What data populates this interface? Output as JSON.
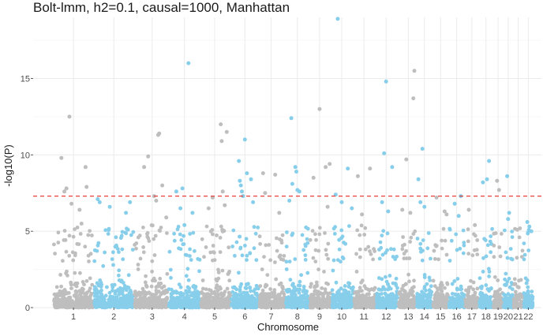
{
  "chart_data": {
    "type": "scatter",
    "title": "Bolt-lmm, h2=0.1, causal=1000, Manhattan",
    "xlabel": "Chromosome",
    "ylabel": "-log10(P)",
    "ylim": [
      0,
      19
    ],
    "yticks": [
      0,
      5,
      10,
      15
    ],
    "grid": true,
    "legend": "none",
    "threshold": {
      "value": 7.3,
      "color": "#e8413c",
      "style": "dashed"
    },
    "colors": {
      "odd": "#bebebe",
      "even": "#87ceeb"
    },
    "chromosomes": [
      {
        "label": "1",
        "center": 1.0,
        "start": 0.0,
        "end": 2.0
      },
      {
        "label": "2",
        "center": 3.0,
        "start": 2.0,
        "end": 4.0
      },
      {
        "label": "3",
        "center": 4.9,
        "start": 4.0,
        "end": 5.7
      },
      {
        "label": "4",
        "center": 6.5,
        "start": 5.7,
        "end": 7.3
      },
      {
        "label": "5",
        "center": 8.0,
        "start": 7.3,
        "end": 8.8
      },
      {
        "label": "6",
        "center": 9.5,
        "start": 8.8,
        "end": 10.2
      },
      {
        "label": "7",
        "center": 10.8,
        "start": 10.2,
        "end": 11.5
      },
      {
        "label": "8",
        "center": 12.1,
        "start": 11.5,
        "end": 12.7
      },
      {
        "label": "9",
        "center": 13.2,
        "start": 12.7,
        "end": 13.8
      },
      {
        "label": "10",
        "center": 14.3,
        "start": 13.8,
        "end": 14.9
      },
      {
        "label": "11",
        "center": 15.4,
        "start": 14.9,
        "end": 16.0
      },
      {
        "label": "12",
        "center": 16.5,
        "start": 16.0,
        "end": 17.1
      },
      {
        "label": "13",
        "center": 17.6,
        "start": 17.1,
        "end": 18.0
      },
      {
        "label": "14",
        "center": 18.4,
        "start": 18.0,
        "end": 18.8
      },
      {
        "label": "15",
        "center": 19.2,
        "start": 18.8,
        "end": 19.6
      },
      {
        "label": "16",
        "center": 20.0,
        "start": 19.6,
        "end": 20.4
      },
      {
        "label": "17",
        "center": 20.75,
        "start": 20.4,
        "end": 21.1
      },
      {
        "label": "18",
        "center": 21.45,
        "start": 21.1,
        "end": 21.8
      },
      {
        "label": "19",
        "center": 22.05,
        "start": 21.8,
        "end": 22.3
      },
      {
        "label": "20",
        "center": 22.55,
        "start": 22.3,
        "end": 22.8
      },
      {
        "label": "21",
        "center": 23.05,
        "start": 22.8,
        "end": 23.3
      },
      {
        "label": "22",
        "center": 23.55,
        "start": 23.3,
        "end": 23.8
      }
    ],
    "xlim": [
      -1.0,
      24.2
    ],
    "notable_points": [
      {
        "chr": "1",
        "x": 0.4,
        "y": 9.8
      },
      {
        "chr": "1",
        "x": 0.55,
        "y": 7.6
      },
      {
        "chr": "1",
        "x": 0.65,
        "y": 7.8
      },
      {
        "chr": "1",
        "x": 0.8,
        "y": 12.5
      },
      {
        "chr": "1",
        "x": 0.9,
        "y": 6.8
      },
      {
        "chr": "1",
        "x": 1.3,
        "y": 6.4
      },
      {
        "chr": "1",
        "x": 1.6,
        "y": 9.2
      },
      {
        "chr": "1",
        "x": 1.65,
        "y": 7.9
      },
      {
        "chr": "1",
        "x": 1.4,
        "y": 5.5
      },
      {
        "chr": "2",
        "x": 2.2,
        "y": 7.1
      },
      {
        "chr": "2",
        "x": 2.3,
        "y": 6.9
      },
      {
        "chr": "2",
        "x": 2.8,
        "y": 6.6
      },
      {
        "chr": "2",
        "x": 3.6,
        "y": 6.2
      },
      {
        "chr": "2",
        "x": 3.7,
        "y": 5.1
      },
      {
        "chr": "2",
        "x": 3.8,
        "y": 6.9
      },
      {
        "chr": "3",
        "x": 4.5,
        "y": 9.2
      },
      {
        "chr": "3",
        "x": 4.7,
        "y": 9.9
      },
      {
        "chr": "3",
        "x": 5.0,
        "y": 7.3
      },
      {
        "chr": "3",
        "x": 5.2,
        "y": 11.3
      },
      {
        "chr": "3",
        "x": 5.25,
        "y": 11.4
      },
      {
        "chr": "3",
        "x": 5.4,
        "y": 8.0
      },
      {
        "chr": "3",
        "x": 5.1,
        "y": 7.0
      },
      {
        "chr": "3",
        "x": 5.6,
        "y": 5.9
      },
      {
        "chr": "4",
        "x": 6.1,
        "y": 7.6
      },
      {
        "chr": "4",
        "x": 6.4,
        "y": 7.8
      },
      {
        "chr": "4",
        "x": 6.7,
        "y": 16.0
      },
      {
        "chr": "4",
        "x": 6.3,
        "y": 6.5
      },
      {
        "chr": "4",
        "x": 6.9,
        "y": 6.2
      },
      {
        "chr": "4",
        "x": 6.5,
        "y": 5.4
      },
      {
        "chr": "5",
        "x": 7.7,
        "y": 6.5
      },
      {
        "chr": "5",
        "x": 7.9,
        "y": 7.2
      },
      {
        "chr": "5",
        "x": 8.3,
        "y": 12.0
      },
      {
        "chr": "5",
        "x": 8.35,
        "y": 10.9
      },
      {
        "chr": "5",
        "x": 8.4,
        "y": 7.6
      },
      {
        "chr": "5",
        "x": 8.6,
        "y": 11.5
      },
      {
        "chr": "5",
        "x": 8.5,
        "y": 6.7
      },
      {
        "chr": "6",
        "x": 9.2,
        "y": 9.6
      },
      {
        "chr": "6",
        "x": 9.25,
        "y": 8.3
      },
      {
        "chr": "6",
        "x": 9.3,
        "y": 8.0
      },
      {
        "chr": "6",
        "x": 9.35,
        "y": 7.6
      },
      {
        "chr": "6",
        "x": 9.4,
        "y": 7.3
      },
      {
        "chr": "6",
        "x": 9.5,
        "y": 11.0
      },
      {
        "chr": "6",
        "x": 9.6,
        "y": 8.8
      },
      {
        "chr": "6",
        "x": 9.8,
        "y": 8.4
      },
      {
        "chr": "6",
        "x": 9.9,
        "y": 6.9
      },
      {
        "chr": "7",
        "x": 10.4,
        "y": 8.8
      },
      {
        "chr": "7",
        "x": 10.5,
        "y": 7.5
      },
      {
        "chr": "7",
        "x": 11.0,
        "y": 8.7
      },
      {
        "chr": "7",
        "x": 11.2,
        "y": 6.2
      },
      {
        "chr": "8",
        "x": 11.8,
        "y": 12.4
      },
      {
        "chr": "8",
        "x": 11.85,
        "y": 8.1
      },
      {
        "chr": "8",
        "x": 12.0,
        "y": 9.2
      },
      {
        "chr": "8",
        "x": 12.05,
        "y": 8.9
      },
      {
        "chr": "8",
        "x": 12.1,
        "y": 7.7
      },
      {
        "chr": "8",
        "x": 12.2,
        "y": 7.6
      },
      {
        "chr": "8",
        "x": 11.7,
        "y": 7.0
      },
      {
        "chr": "9",
        "x": 12.9,
        "y": 8.5
      },
      {
        "chr": "9",
        "x": 13.2,
        "y": 13.0
      },
      {
        "chr": "9",
        "x": 13.5,
        "y": 9.2
      },
      {
        "chr": "9",
        "x": 13.7,
        "y": 9.4
      },
      {
        "chr": "9",
        "x": 13.6,
        "y": 6.6
      },
      {
        "chr": "10",
        "x": 14.1,
        "y": 18.9
      },
      {
        "chr": "10",
        "x": 14.0,
        "y": 7.4
      },
      {
        "chr": "10",
        "x": 14.3,
        "y": 6.9
      },
      {
        "chr": "10",
        "x": 14.6,
        "y": 9.1
      },
      {
        "chr": "10",
        "x": 14.8,
        "y": 6.5
      },
      {
        "chr": "11",
        "x": 15.1,
        "y": 8.6
      },
      {
        "chr": "11",
        "x": 15.7,
        "y": 9.1
      },
      {
        "chr": "11",
        "x": 15.3,
        "y": 6.1
      },
      {
        "chr": "12",
        "x": 16.3,
        "y": 6.9
      },
      {
        "chr": "12",
        "x": 16.4,
        "y": 10.1
      },
      {
        "chr": "12",
        "x": 16.5,
        "y": 14.8
      },
      {
        "chr": "12",
        "x": 16.8,
        "y": 9.2
      },
      {
        "chr": "12",
        "x": 16.6,
        "y": 6.3
      },
      {
        "chr": "13",
        "x": 17.3,
        "y": 6.4
      },
      {
        "chr": "13",
        "x": 17.5,
        "y": 9.7
      },
      {
        "chr": "13",
        "x": 17.9,
        "y": 15.5
      },
      {
        "chr": "13",
        "x": 17.85,
        "y": 13.7
      },
      {
        "chr": "13",
        "x": 17.7,
        "y": 6.2
      },
      {
        "chr": "14",
        "x": 18.3,
        "y": 10.4
      },
      {
        "chr": "14",
        "x": 18.1,
        "y": 8.4
      },
      {
        "chr": "14",
        "x": 18.4,
        "y": 6.6
      },
      {
        "chr": "14",
        "x": 18.2,
        "y": 6.9
      },
      {
        "chr": "15",
        "x": 19.0,
        "y": 7.2
      },
      {
        "chr": "15",
        "x": 19.4,
        "y": 6.3
      },
      {
        "chr": "15",
        "x": 19.5,
        "y": 6.1
      },
      {
        "chr": "16",
        "x": 19.9,
        "y": 6.8
      },
      {
        "chr": "16",
        "x": 20.2,
        "y": 7.3
      },
      {
        "chr": "16",
        "x": 20.1,
        "y": 6.0
      },
      {
        "chr": "17",
        "x": 20.6,
        "y": 6.4
      },
      {
        "chr": "17",
        "x": 20.9,
        "y": 5.4
      },
      {
        "chr": "18",
        "x": 21.3,
        "y": 8.2
      },
      {
        "chr": "18",
        "x": 21.6,
        "y": 9.6
      },
      {
        "chr": "18",
        "x": 21.5,
        "y": 8.4
      },
      {
        "chr": "19",
        "x": 22.0,
        "y": 8.3
      },
      {
        "chr": "19",
        "x": 22.1,
        "y": 7.7
      },
      {
        "chr": "20",
        "x": 22.5,
        "y": 8.6
      },
      {
        "chr": "20",
        "x": 22.6,
        "y": 6.2
      },
      {
        "chr": "20",
        "x": 22.55,
        "y": 5.8
      },
      {
        "chr": "22",
        "x": 23.5,
        "y": 5.6
      },
      {
        "chr": "22",
        "x": 23.7,
        "y": 5.0
      },
      {
        "chr": "22",
        "x": 23.6,
        "y": 5.3
      }
    ]
  }
}
